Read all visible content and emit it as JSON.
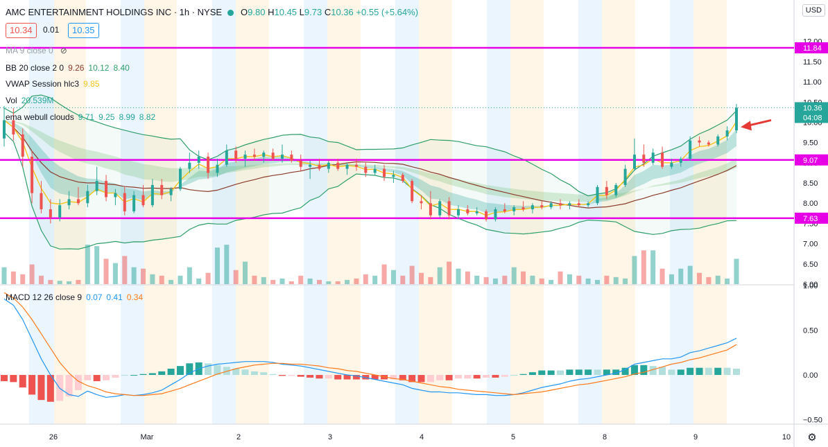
{
  "header": {
    "title": "AMC ENTERTAINMENT HOLDINGS INC · 1h · NYSE",
    "open": "9.80",
    "high": "10.45",
    "low": "9.73",
    "close": "10.36",
    "change": "+0.55 (+5.64%)"
  },
  "price_boxes": {
    "bid": "10.34",
    "spread": "0.01",
    "ask": "10.35"
  },
  "currency": "USD",
  "indicators": {
    "ma": {
      "name": "MA 9 close 0",
      "value": ""
    },
    "bb": {
      "name": "BB 20 close 2 0",
      "v1": "9.26",
      "v2": "10.12",
      "v3": "8.40"
    },
    "vwap": {
      "name": "VWAP Session hlc3",
      "value": "9.85"
    },
    "vol": {
      "name": "Vol",
      "value": "20.539M"
    },
    "ema": {
      "name": "ema webull clouds",
      "v1": "9.71",
      "v2": "9.25",
      "v3": "8.99",
      "v4": "8.82"
    },
    "macd": {
      "name": "MACD 12 26 close 9",
      "v1": "0.07",
      "v2": "0.41",
      "v3": "0.34"
    }
  },
  "colors": {
    "up": "#26a69a",
    "down": "#ef5350",
    "hline": "#e600e6",
    "bb": "#2e9e6a",
    "vwap": "#f5c518",
    "sma": "#8b3a2a",
    "macd": "#2196f3",
    "signal": "#ff7a1a",
    "blue_band": "#e3f2fd",
    "orange_band": "#fff3e0"
  },
  "chart_data": {
    "type": "candlestick",
    "price_axis_ticks": [
      "12.00",
      "11.50",
      "11.00",
      "10.50",
      "10.00",
      "9.50",
      "9.00",
      "8.50",
      "8.00",
      "7.50",
      "7.00",
      "6.50",
      "6.00"
    ],
    "price_ylim": [
      6.0,
      12.2
    ],
    "macd_axis_ticks": [
      "1.00",
      "0.50",
      "0.00",
      "−0.50"
    ],
    "macd_ylim": [
      -0.55,
      1.0
    ],
    "x_labels": [
      "26",
      "Mar",
      "2",
      "3",
      "4",
      "5",
      "8",
      "9",
      "10"
    ],
    "horizontal_lines": [
      {
        "label": "11.84",
        "value": 11.84
      },
      {
        "label": "9.07",
        "value": 9.07
      },
      {
        "label": "7.63",
        "value": 7.63
      }
    ],
    "last_price_label": "10.36",
    "countdown_label": "04:08",
    "candles": [
      {
        "o": 9.6,
        "h": 10.4,
        "l": 9.4,
        "c": 10.05
      },
      {
        "o": 10.05,
        "h": 10.35,
        "l": 9.55,
        "c": 9.7
      },
      {
        "o": 9.7,
        "h": 9.85,
        "l": 8.9,
        "c": 9.15
      },
      {
        "o": 9.15,
        "h": 9.3,
        "l": 8.0,
        "c": 8.25
      },
      {
        "o": 8.25,
        "h": 8.55,
        "l": 7.75,
        "c": 7.85
      },
      {
        "o": 7.85,
        "h": 8.1,
        "l": 7.5,
        "c": 7.65
      },
      {
        "o": 7.65,
        "h": 8.1,
        "l": 7.55,
        "c": 7.95
      },
      {
        "o": 7.95,
        "h": 8.3,
        "l": 7.85,
        "c": 8.1
      },
      {
        "o": 8.1,
        "h": 8.4,
        "l": 7.95,
        "c": 8.0
      },
      {
        "o": 8.0,
        "h": 8.45,
        "l": 7.9,
        "c": 8.3
      },
      {
        "o": 8.3,
        "h": 8.9,
        "l": 8.2,
        "c": 8.55
      },
      {
        "o": 8.55,
        "h": 8.7,
        "l": 8.05,
        "c": 8.15
      },
      {
        "o": 8.15,
        "h": 8.35,
        "l": 7.95,
        "c": 8.25
      },
      {
        "o": 8.25,
        "h": 8.4,
        "l": 7.7,
        "c": 7.8
      },
      {
        "o": 7.8,
        "h": 8.3,
        "l": 7.75,
        "c": 8.2
      },
      {
        "o": 8.2,
        "h": 8.45,
        "l": 7.9,
        "c": 7.95
      },
      {
        "o": 7.95,
        "h": 8.6,
        "l": 7.9,
        "c": 8.45
      },
      {
        "o": 8.45,
        "h": 8.6,
        "l": 8.1,
        "c": 8.2
      },
      {
        "o": 8.2,
        "h": 8.4,
        "l": 8.05,
        "c": 8.35
      },
      {
        "o": 8.35,
        "h": 8.9,
        "l": 8.3,
        "c": 8.85
      },
      {
        "o": 8.85,
        "h": 9.25,
        "l": 8.75,
        "c": 9.0
      },
      {
        "o": 9.0,
        "h": 9.3,
        "l": 8.85,
        "c": 9.15
      },
      {
        "o": 9.15,
        "h": 9.25,
        "l": 8.6,
        "c": 8.75
      },
      {
        "o": 8.75,
        "h": 9.1,
        "l": 8.65,
        "c": 8.95
      },
      {
        "o": 8.95,
        "h": 9.45,
        "l": 8.9,
        "c": 9.3
      },
      {
        "o": 9.3,
        "h": 9.4,
        "l": 9.0,
        "c": 9.1
      },
      {
        "o": 9.1,
        "h": 9.3,
        "l": 8.9,
        "c": 9.2
      },
      {
        "o": 9.2,
        "h": 9.35,
        "l": 9.05,
        "c": 9.15
      },
      {
        "o": 9.15,
        "h": 9.3,
        "l": 9.0,
        "c": 9.25
      },
      {
        "o": 9.25,
        "h": 9.35,
        "l": 9.05,
        "c": 9.1
      },
      {
        "o": 9.1,
        "h": 9.45,
        "l": 9.0,
        "c": 9.2
      },
      {
        "o": 9.2,
        "h": 9.3,
        "l": 9.0,
        "c": 9.05
      },
      {
        "o": 9.05,
        "h": 9.2,
        "l": 8.8,
        "c": 8.9
      },
      {
        "o": 8.9,
        "h": 9.05,
        "l": 8.6,
        "c": 8.95
      },
      {
        "o": 8.95,
        "h": 9.1,
        "l": 8.8,
        "c": 8.85
      },
      {
        "o": 8.85,
        "h": 9.05,
        "l": 8.75,
        "c": 9.0
      },
      {
        "o": 9.0,
        "h": 9.1,
        "l": 8.8,
        "c": 8.85
      },
      {
        "o": 8.85,
        "h": 9.0,
        "l": 8.7,
        "c": 8.95
      },
      {
        "o": 8.95,
        "h": 9.1,
        "l": 8.8,
        "c": 8.9
      },
      {
        "o": 8.9,
        "h": 9.0,
        "l": 8.65,
        "c": 8.75
      },
      {
        "o": 8.75,
        "h": 8.95,
        "l": 8.7,
        "c": 8.85
      },
      {
        "o": 8.85,
        "h": 8.95,
        "l": 8.55,
        "c": 8.65
      },
      {
        "o": 8.65,
        "h": 8.8,
        "l": 8.5,
        "c": 8.7
      },
      {
        "o": 8.7,
        "h": 8.75,
        "l": 8.5,
        "c": 8.55
      },
      {
        "o": 8.55,
        "h": 8.6,
        "l": 8.0,
        "c": 8.05
      },
      {
        "o": 8.05,
        "h": 8.2,
        "l": 7.85,
        "c": 8.0
      },
      {
        "o": 8.0,
        "h": 8.3,
        "l": 7.6,
        "c": 7.7
      },
      {
        "o": 7.7,
        "h": 8.1,
        "l": 7.65,
        "c": 8.05
      },
      {
        "o": 8.05,
        "h": 8.15,
        "l": 7.6,
        "c": 7.7
      },
      {
        "o": 7.7,
        "h": 7.95,
        "l": 7.6,
        "c": 7.85
      },
      {
        "o": 7.85,
        "h": 7.95,
        "l": 7.7,
        "c": 7.75
      },
      {
        "o": 7.75,
        "h": 7.9,
        "l": 7.7,
        "c": 7.8
      },
      {
        "o": 7.8,
        "h": 7.85,
        "l": 7.55,
        "c": 7.6
      },
      {
        "o": 7.6,
        "h": 7.9,
        "l": 7.55,
        "c": 7.85
      },
      {
        "o": 7.85,
        "h": 8.0,
        "l": 7.75,
        "c": 7.8
      },
      {
        "o": 7.8,
        "h": 7.95,
        "l": 7.7,
        "c": 7.9
      },
      {
        "o": 7.9,
        "h": 8.05,
        "l": 7.8,
        "c": 7.85
      },
      {
        "o": 7.85,
        "h": 8.0,
        "l": 7.75,
        "c": 7.95
      },
      {
        "o": 7.95,
        "h": 8.05,
        "l": 7.85,
        "c": 7.9
      },
      {
        "o": 7.9,
        "h": 8.05,
        "l": 7.85,
        "c": 8.0
      },
      {
        "o": 8.0,
        "h": 8.1,
        "l": 7.85,
        "c": 7.95
      },
      {
        "o": 7.95,
        "h": 8.05,
        "l": 7.85,
        "c": 8.0
      },
      {
        "o": 8.0,
        "h": 8.1,
        "l": 7.9,
        "c": 7.95
      },
      {
        "o": 7.95,
        "h": 8.05,
        "l": 7.9,
        "c": 8.0
      },
      {
        "o": 8.0,
        "h": 8.45,
        "l": 7.95,
        "c": 8.4
      },
      {
        "o": 8.4,
        "h": 8.55,
        "l": 8.1,
        "c": 8.2
      },
      {
        "o": 8.2,
        "h": 8.5,
        "l": 8.15,
        "c": 8.45
      },
      {
        "o": 8.45,
        "h": 8.95,
        "l": 8.4,
        "c": 8.85
      },
      {
        "o": 8.85,
        "h": 9.6,
        "l": 8.8,
        "c": 9.2
      },
      {
        "o": 9.2,
        "h": 9.45,
        "l": 8.9,
        "c": 9.0
      },
      {
        "o": 9.0,
        "h": 9.35,
        "l": 8.95,
        "c": 9.25
      },
      {
        "o": 9.25,
        "h": 9.4,
        "l": 8.85,
        "c": 8.9
      },
      {
        "o": 8.9,
        "h": 9.1,
        "l": 8.85,
        "c": 9.0
      },
      {
        "o": 9.0,
        "h": 9.15,
        "l": 8.9,
        "c": 9.1
      },
      {
        "o": 9.1,
        "h": 9.65,
        "l": 9.05,
        "c": 9.55
      },
      {
        "o": 9.55,
        "h": 9.65,
        "l": 9.4,
        "c": 9.5
      },
      {
        "o": 9.5,
        "h": 9.55,
        "l": 9.4,
        "c": 9.45
      },
      {
        "o": 9.45,
        "h": 9.7,
        "l": 9.4,
        "c": 9.65
      },
      {
        "o": 9.65,
        "h": 9.9,
        "l": 9.55,
        "c": 9.8
      },
      {
        "o": 9.8,
        "h": 10.45,
        "l": 9.73,
        "c": 10.36
      }
    ],
    "volume": [
      0.6,
      0.45,
      0.35,
      0.7,
      0.3,
      0.15,
      0.12,
      0.1,
      0.15,
      1.4,
      1.35,
      0.9,
      0.75,
      1.0,
      0.6,
      0.55,
      0.35,
      0.3,
      0.15,
      0.3,
      0.6,
      0.2,
      0.4,
      1.3,
      1.4,
      0.5,
      0.8,
      0.3,
      0.25,
      0.15,
      0.2,
      0.1,
      0.3,
      0.2,
      0.15,
      0.1,
      0.1,
      0.15,
      0.2,
      0.35,
      0.3,
      0.7,
      0.5,
      0.3,
      0.65,
      0.4,
      0.25,
      0.6,
      0.8,
      0.55,
      0.45,
      0.3,
      0.25,
      0.2,
      0.3,
      0.6,
      0.45,
      0.3,
      0.2,
      0.15,
      0.45,
      0.35,
      0.3,
      0.2,
      0.15,
      0.3,
      0.25,
      0.2,
      1.0,
      1.2,
      1.2,
      0.55,
      0.35,
      0.55,
      0.65,
      0.4,
      0.25,
      0.3,
      0.2,
      0.9
    ],
    "macd": [
      0.85,
      0.78,
      0.62,
      0.4,
      0.18,
      0.0,
      -0.15,
      -0.22,
      -0.24,
      -0.18,
      -0.22,
      -0.25,
      -0.24,
      -0.22,
      -0.23,
      -0.22,
      -0.2,
      -0.17,
      -0.11,
      -0.05,
      0.02,
      0.07,
      0.1,
      0.12,
      0.13,
      0.14,
      0.15,
      0.15,
      0.15,
      0.14,
      0.12,
      0.11,
      0.1,
      0.08,
      0.06,
      0.04,
      0.02,
      0.0,
      -0.01,
      -0.03,
      -0.05,
      -0.07,
      -0.09,
      -0.11,
      -0.15,
      -0.17,
      -0.19,
      -0.19,
      -0.2,
      -0.2,
      -0.21,
      -0.22,
      -0.22,
      -0.23,
      -0.23,
      -0.22,
      -0.2,
      -0.17,
      -0.14,
      -0.12,
      -0.1,
      -0.07,
      -0.05,
      -0.04,
      -0.02,
      0.0,
      0.02,
      0.06,
      0.12,
      0.14,
      0.16,
      0.18,
      0.18,
      0.2,
      0.25,
      0.27,
      0.3,
      0.33,
      0.36,
      0.41
    ],
    "signal": [
      0.92,
      0.86,
      0.76,
      0.62,
      0.46,
      0.3,
      0.14,
      0.02,
      -0.07,
      -0.12,
      -0.15,
      -0.19,
      -0.21,
      -0.22,
      -0.23,
      -0.23,
      -0.22,
      -0.21,
      -0.18,
      -0.15,
      -0.11,
      -0.07,
      -0.03,
      0.01,
      0.04,
      0.07,
      0.09,
      0.11,
      0.12,
      0.13,
      0.13,
      0.12,
      0.12,
      0.11,
      0.1,
      0.08,
      0.07,
      0.05,
      0.04,
      0.02,
      0.0,
      -0.02,
      -0.04,
      -0.05,
      -0.07,
      -0.09,
      -0.11,
      -0.13,
      -0.14,
      -0.16,
      -0.17,
      -0.18,
      -0.19,
      -0.2,
      -0.21,
      -0.22,
      -0.21,
      -0.2,
      -0.19,
      -0.17,
      -0.15,
      -0.13,
      -0.11,
      -0.1,
      -0.08,
      -0.06,
      -0.04,
      -0.02,
      0.01,
      0.03,
      0.06,
      0.09,
      0.12,
      0.14,
      0.17,
      0.19,
      0.22,
      0.25,
      0.28,
      0.34
    ]
  }
}
